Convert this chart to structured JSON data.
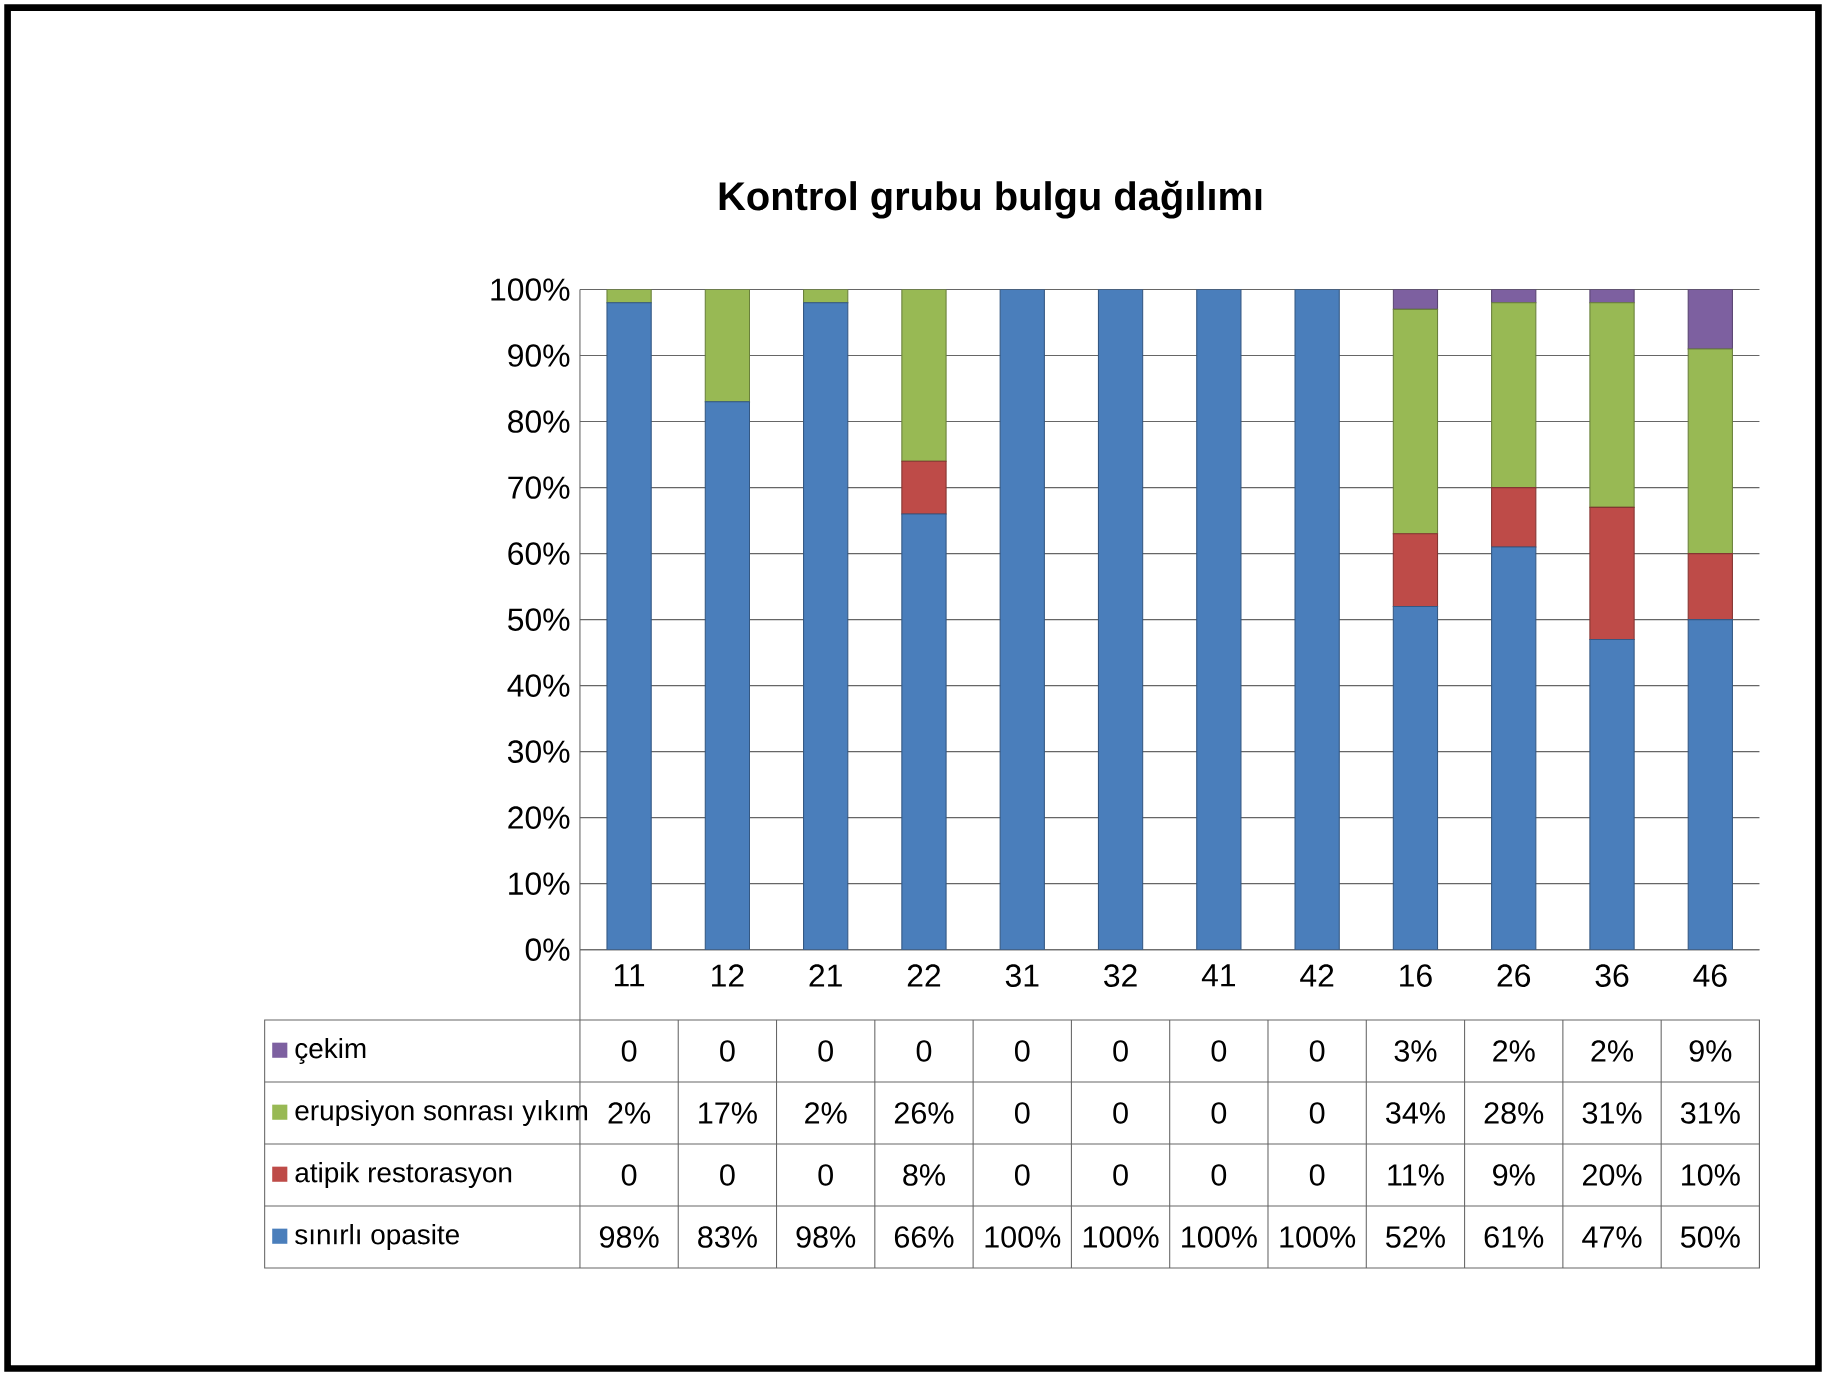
{
  "chart_data": {
    "type": "bar",
    "stacked": true,
    "title": "Kontrol grubu bulgu dağılımı",
    "categories": [
      "11",
      "12",
      "21",
      "22",
      "31",
      "32",
      "41",
      "42",
      "16",
      "26",
      "36",
      "46"
    ],
    "series": [
      {
        "name": "sınırlı opasite",
        "color": "#4a7ebb",
        "values": [
          98,
          83,
          98,
          66,
          100,
          100,
          100,
          100,
          52,
          61,
          47,
          50
        ],
        "value_labels": [
          "98%",
          "83%",
          "98%",
          "66%",
          "100%",
          "100%",
          "100%",
          "100%",
          "52%",
          "61%",
          "47%",
          "50%"
        ]
      },
      {
        "name": "atipik restorasyon",
        "color": "#be4b48",
        "values": [
          0,
          0,
          0,
          8,
          0,
          0,
          0,
          0,
          11,
          9,
          20,
          10
        ],
        "value_labels": [
          "0",
          "0",
          "0",
          "8%",
          "0",
          "0",
          "0",
          "0",
          "11%",
          "9%",
          "20%",
          "10%"
        ]
      },
      {
        "name": "erupsiyon sonrası yıkım",
        "color": "#98b954",
        "values": [
          2,
          17,
          2,
          26,
          0,
          0,
          0,
          0,
          34,
          28,
          31,
          31
        ],
        "value_labels": [
          "2%",
          "17%",
          "2%",
          "26%",
          "0",
          "0",
          "0",
          "0",
          "34%",
          "28%",
          "31%",
          "31%"
        ]
      },
      {
        "name": "çekim",
        "color": "#7d60a0",
        "values": [
          0,
          0,
          0,
          0,
          0,
          0,
          0,
          0,
          3,
          2,
          2,
          9
        ],
        "value_labels": [
          "0",
          "0",
          "0",
          "0",
          "0",
          "0",
          "0",
          "0",
          "3%",
          "2%",
          "2%",
          "9%"
        ]
      }
    ],
    "ylim": [
      0,
      100
    ],
    "yticks": [
      {
        "value": 0,
        "label": "0%"
      },
      {
        "value": 10,
        "label": "10%"
      },
      {
        "value": 20,
        "label": "20%"
      },
      {
        "value": 30,
        "label": "30%"
      },
      {
        "value": 40,
        "label": "40%"
      },
      {
        "value": 50,
        "label": "50%"
      },
      {
        "value": 60,
        "label": "60%"
      },
      {
        "value": 70,
        "label": "70%"
      },
      {
        "value": 80,
        "label": "80%"
      },
      {
        "value": 90,
        "label": "90%"
      },
      {
        "value": 100,
        "label": "100%"
      }
    ],
    "grid": "y",
    "legend": "bottom"
  }
}
